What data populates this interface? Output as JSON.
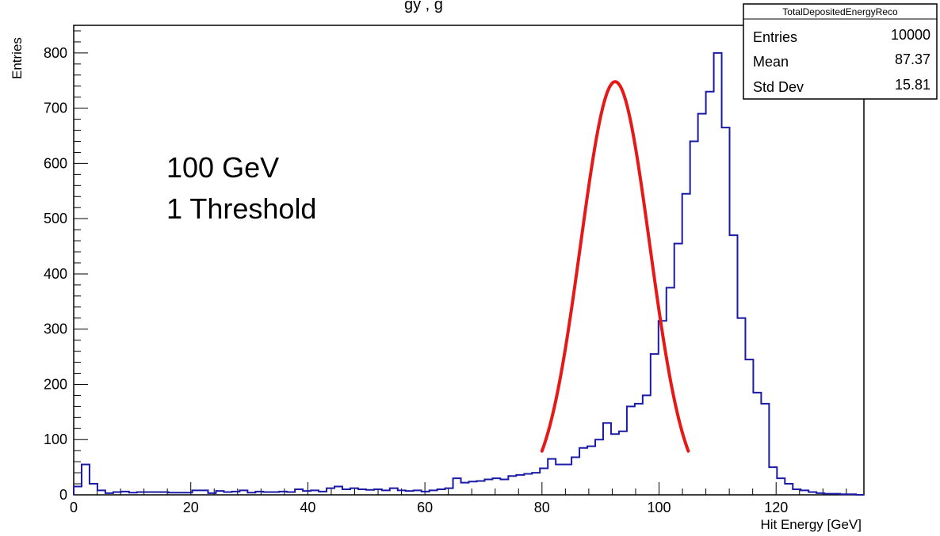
{
  "chart_data": {
    "type": "histogram",
    "title_fragment": "gy  ,  g",
    "xlabel": "Hit Energy [GeV]",
    "ylabel": "Entries",
    "xlim": [
      0,
      135
    ],
    "ylim": [
      0,
      850
    ],
    "xticks": [
      0,
      20,
      40,
      60,
      80,
      100,
      120
    ],
    "yticks": [
      0,
      100,
      200,
      300,
      400,
      500,
      600,
      700,
      800
    ],
    "grid": false,
    "annotations": [
      "100 GeV",
      "1 Threshold"
    ],
    "stats_box": {
      "name": "TotalDepositedEnergyReco",
      "rows": [
        {
          "label": "Entries",
          "value": "10000"
        },
        {
          "label": "Mean",
          "value": "87.37"
        },
        {
          "label": "Std Dev",
          "value": "15.81"
        }
      ]
    },
    "series": [
      {
        "kind": "step",
        "color": "#1a1aa6",
        "bin_width": 1.35,
        "x_start": 0,
        "values": [
          15,
          55,
          20,
          8,
          3,
          5,
          6,
          4,
          5,
          5,
          5,
          5,
          4,
          4,
          4,
          8,
          8,
          3,
          7,
          5,
          6,
          8,
          4,
          6,
          5,
          5,
          6,
          5,
          10,
          7,
          8,
          6,
          12,
          15,
          10,
          12,
          10,
          9,
          10,
          8,
          12,
          8,
          7,
          8,
          6,
          8,
          10,
          12,
          30,
          22,
          24,
          25,
          28,
          30,
          28,
          34,
          36,
          38,
          40,
          48,
          65,
          55,
          55,
          68,
          85,
          88,
          100,
          130,
          110,
          115,
          160,
          165,
          180,
          255,
          315,
          375,
          455,
          545,
          640,
          690,
          730,
          800,
          665,
          470,
          320,
          245,
          185,
          165,
          50,
          30,
          20,
          10,
          8,
          5,
          3,
          2,
          2,
          1,
          1,
          0
        ]
      },
      {
        "kind": "fit",
        "color": "#e61919",
        "model": "gaussian",
        "amplitude": 748,
        "mean": 92.5,
        "sigma": 5.9,
        "range": [
          80,
          105
        ]
      }
    ]
  }
}
